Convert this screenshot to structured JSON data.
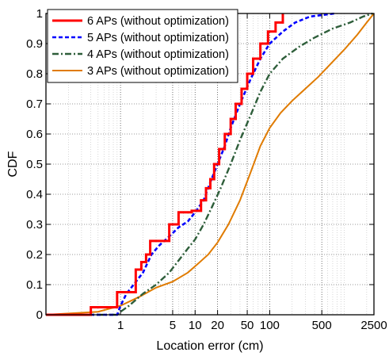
{
  "chart_data": {
    "type": "line",
    "xscale": "log",
    "xlabel": "Location error (cm)",
    "ylabel": "CDF",
    "xlim": [
      0.1,
      2500
    ],
    "ylim": [
      0,
      1.0
    ],
    "x_ticks": [
      1,
      5,
      10,
      20,
      50,
      100,
      500,
      2500
    ],
    "x_tick_labels": [
      "1",
      "5",
      "10",
      "20",
      "50",
      "100",
      "500",
      "2500"
    ],
    "y_ticks": [
      0,
      0.1,
      0.2,
      0.3,
      0.4,
      0.5,
      0.6,
      0.7,
      0.8,
      0.9,
      1
    ],
    "y_tick_labels": [
      "0",
      "0.1",
      "0.2",
      "0.3",
      "0.4",
      "0.5",
      "0.6",
      "0.7",
      "0.8",
      "0.9",
      "1"
    ],
    "grid": true,
    "legend_position": "top-left",
    "series": [
      {
        "name": "6 APs (without optimization)",
        "color": "#ff0000",
        "style": "solid-step",
        "points": [
          [
            0.1,
            0
          ],
          [
            0.4,
            0
          ],
          [
            0.4,
            0.025
          ],
          [
            0.9,
            0.025
          ],
          [
            0.9,
            0.075
          ],
          [
            1.6,
            0.075
          ],
          [
            1.6,
            0.15
          ],
          [
            1.9,
            0.15
          ],
          [
            1.9,
            0.175
          ],
          [
            2.2,
            0.175
          ],
          [
            2.2,
            0.2
          ],
          [
            2.5,
            0.2
          ],
          [
            2.5,
            0.245
          ],
          [
            4.5,
            0.245
          ],
          [
            4.5,
            0.3
          ],
          [
            6,
            0.3
          ],
          [
            6,
            0.34
          ],
          [
            9,
            0.34
          ],
          [
            9,
            0.345
          ],
          [
            12,
            0.345
          ],
          [
            12,
            0.38
          ],
          [
            14,
            0.38
          ],
          [
            14,
            0.42
          ],
          [
            16,
            0.42
          ],
          [
            16,
            0.45
          ],
          [
            18,
            0.45
          ],
          [
            18,
            0.5
          ],
          [
            21,
            0.5
          ],
          [
            21,
            0.55
          ],
          [
            25,
            0.55
          ],
          [
            25,
            0.6
          ],
          [
            30,
            0.6
          ],
          [
            30,
            0.65
          ],
          [
            35,
            0.65
          ],
          [
            35,
            0.7
          ],
          [
            42,
            0.7
          ],
          [
            42,
            0.75
          ],
          [
            50,
            0.75
          ],
          [
            50,
            0.8
          ],
          [
            60,
            0.8
          ],
          [
            60,
            0.85
          ],
          [
            75,
            0.85
          ],
          [
            75,
            0.9
          ],
          [
            95,
            0.9
          ],
          [
            95,
            0.94
          ],
          [
            120,
            0.94
          ],
          [
            120,
            0.97
          ],
          [
            150,
            0.97
          ],
          [
            150,
            1.0
          ]
        ]
      },
      {
        "name": "5 APs (without optimization)",
        "color": "#0000ff",
        "style": "dashed",
        "points": [
          [
            0.1,
            0
          ],
          [
            0.9,
            0
          ],
          [
            1.0,
            0.03
          ],
          [
            1.2,
            0.07
          ],
          [
            1.5,
            0.1
          ],
          [
            2,
            0.14
          ],
          [
            2.6,
            0.2
          ],
          [
            3.3,
            0.23
          ],
          [
            4.5,
            0.26
          ],
          [
            6,
            0.29
          ],
          [
            8,
            0.31
          ],
          [
            10,
            0.34
          ],
          [
            13,
            0.38
          ],
          [
            16,
            0.44
          ],
          [
            20,
            0.5
          ],
          [
            25,
            0.56
          ],
          [
            30,
            0.62
          ],
          [
            40,
            0.7
          ],
          [
            55,
            0.78
          ],
          [
            75,
            0.85
          ],
          [
            100,
            0.9
          ],
          [
            150,
            0.94
          ],
          [
            220,
            0.97
          ],
          [
            350,
            0.99
          ],
          [
            750,
            1.0
          ]
        ]
      },
      {
        "name": "4 APs (without optimization)",
        "color": "#2e5e3a",
        "style": "dashdot",
        "points": [
          [
            0.1,
            0
          ],
          [
            0.9,
            0
          ],
          [
            1.0,
            0.01
          ],
          [
            1.3,
            0.03
          ],
          [
            2,
            0.07
          ],
          [
            3,
            0.1
          ],
          [
            4.5,
            0.14
          ],
          [
            6,
            0.18
          ],
          [
            8,
            0.22
          ],
          [
            10,
            0.25
          ],
          [
            13,
            0.3
          ],
          [
            17,
            0.36
          ],
          [
            22,
            0.42
          ],
          [
            30,
            0.5
          ],
          [
            40,
            0.58
          ],
          [
            55,
            0.66
          ],
          [
            75,
            0.74
          ],
          [
            100,
            0.8
          ],
          [
            150,
            0.85
          ],
          [
            250,
            0.89
          ],
          [
            400,
            0.92
          ],
          [
            700,
            0.95
          ],
          [
            1200,
            0.97
          ],
          [
            1800,
            0.99
          ],
          [
            2400,
            1.0
          ]
        ]
      },
      {
        "name": "3 APs (without optimization)",
        "color": "#e07b00",
        "style": "solid",
        "points": [
          [
            0.1,
            0
          ],
          [
            0.5,
            0.01
          ],
          [
            1,
            0.03
          ],
          [
            1.8,
            0.06
          ],
          [
            3,
            0.09
          ],
          [
            5,
            0.11
          ],
          [
            8,
            0.14
          ],
          [
            11,
            0.17
          ],
          [
            15,
            0.2
          ],
          [
            20,
            0.24
          ],
          [
            28,
            0.3
          ],
          [
            40,
            0.38
          ],
          [
            55,
            0.47
          ],
          [
            75,
            0.56
          ],
          [
            100,
            0.62
          ],
          [
            140,
            0.67
          ],
          [
            200,
            0.71
          ],
          [
            300,
            0.75
          ],
          [
            450,
            0.79
          ],
          [
            700,
            0.84
          ],
          [
            1000,
            0.88
          ],
          [
            1500,
            0.93
          ],
          [
            2000,
            0.97
          ],
          [
            2500,
            1.0
          ]
        ]
      }
    ]
  }
}
